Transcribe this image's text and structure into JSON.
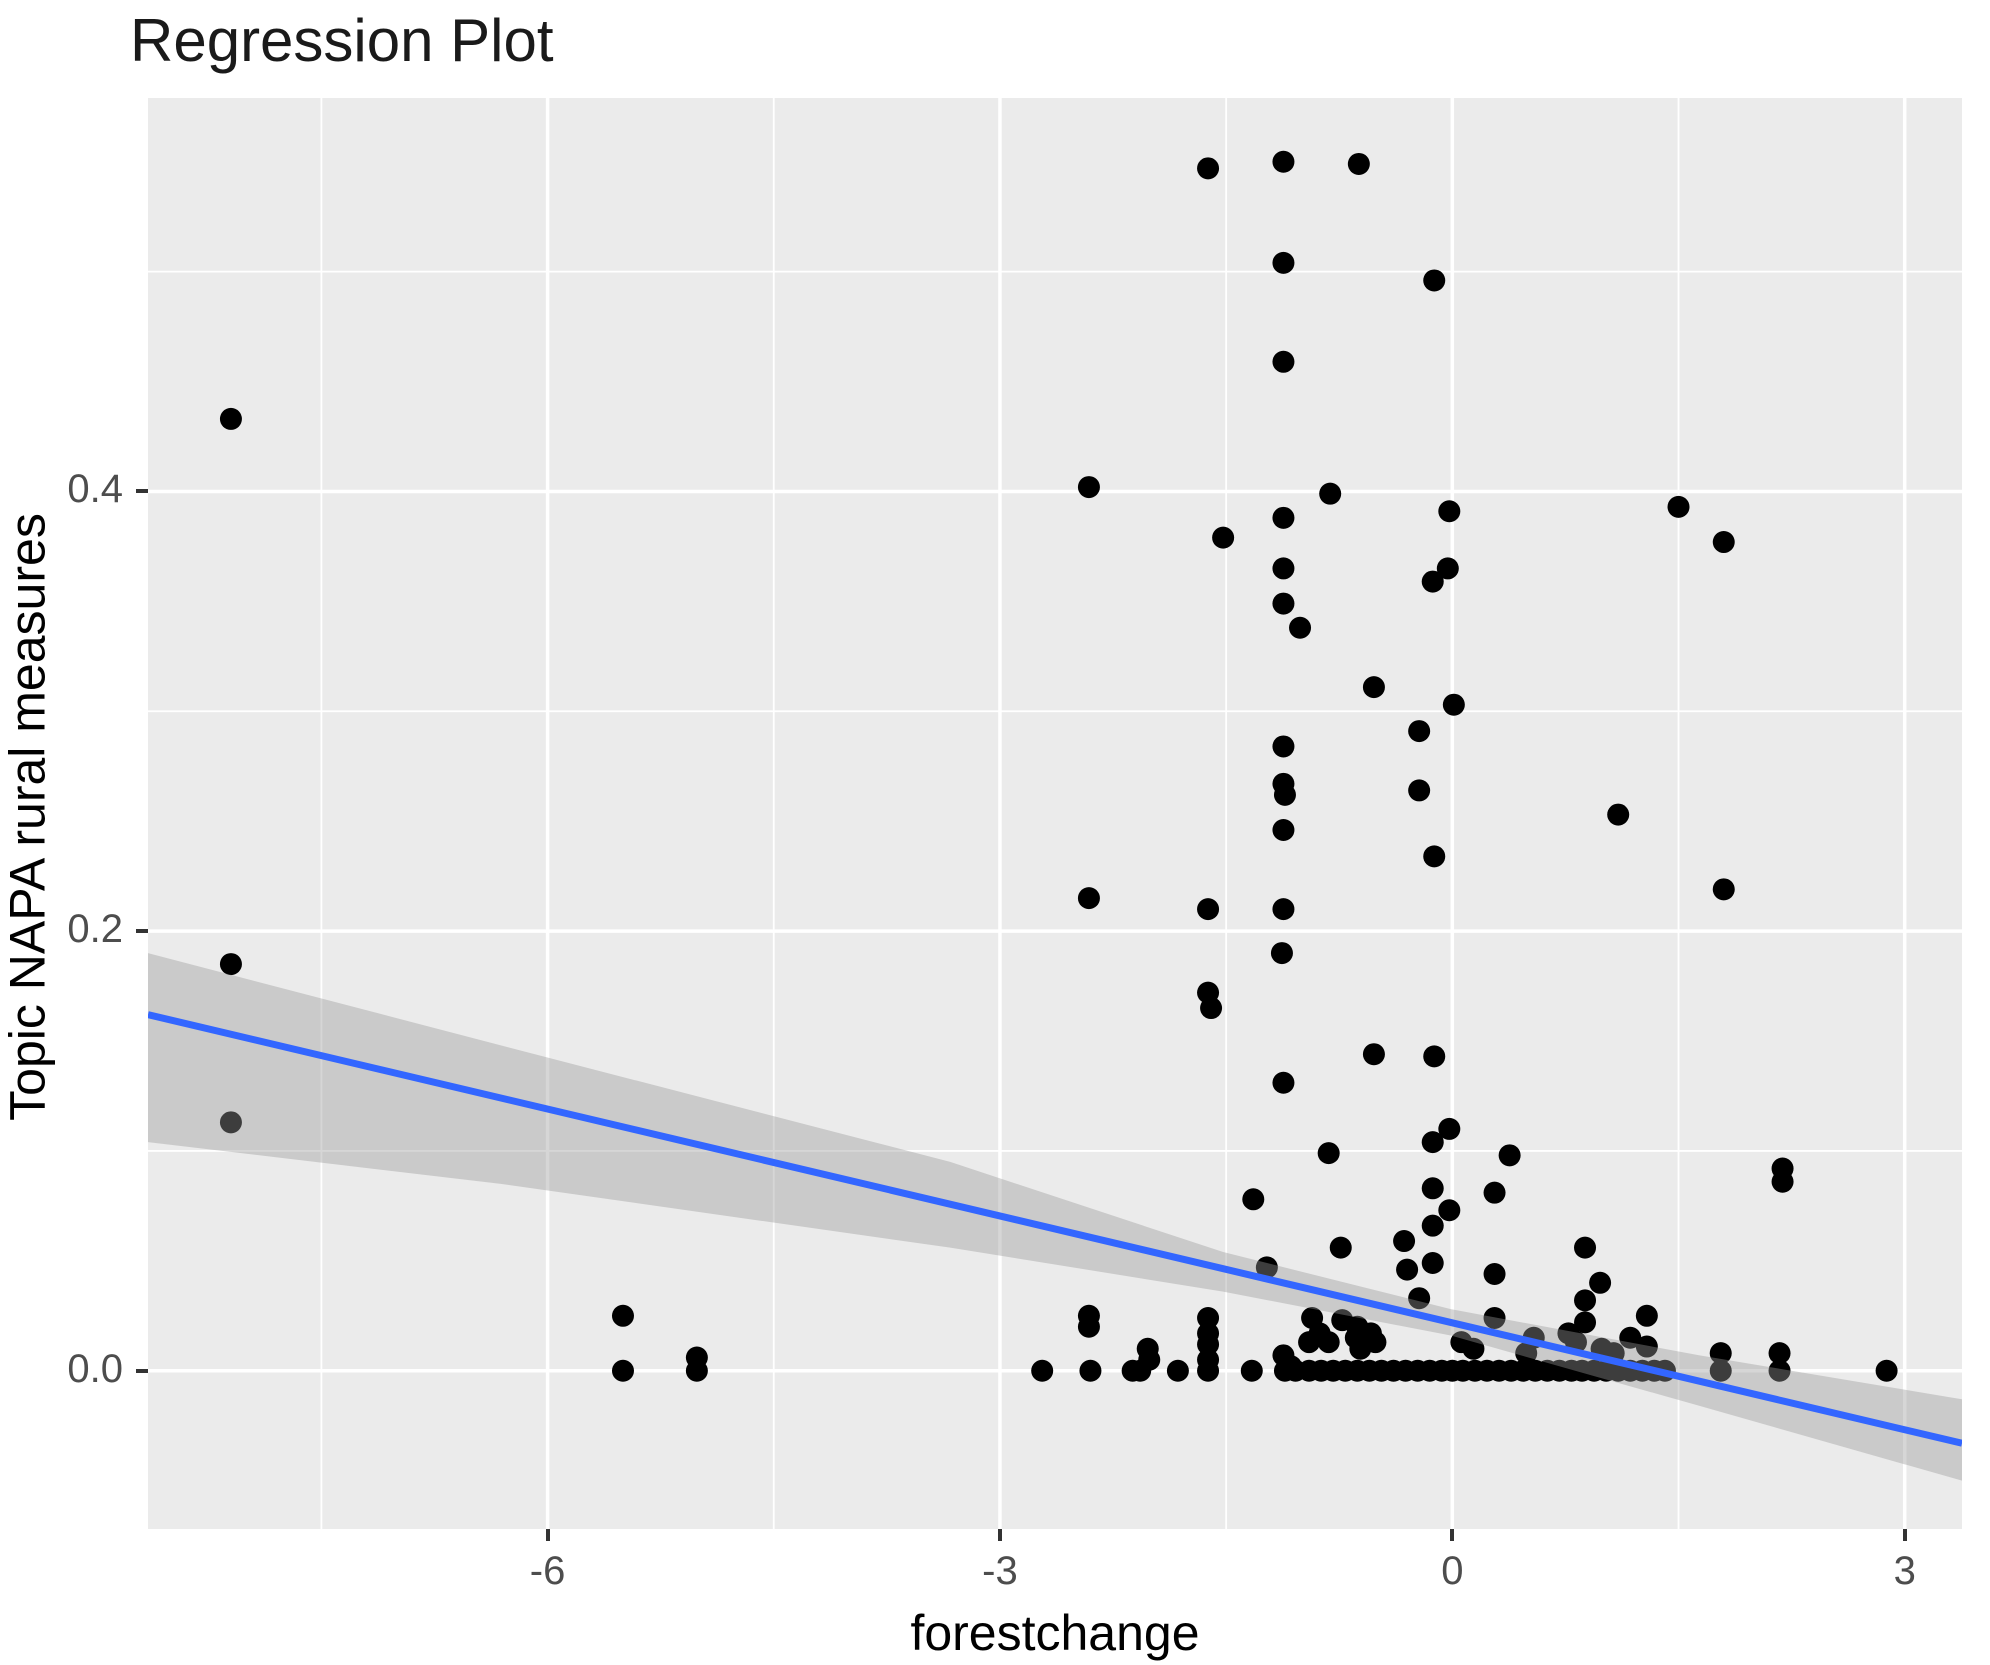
{
  "chart_data": {
    "type": "scatter",
    "title": "Regression Plot",
    "xlabel": "forestchange",
    "ylabel": "Topic NAPA rural measures",
    "xlim": [
      -8.65,
      3.38
    ],
    "ylim": [
      -0.072,
      0.579
    ],
    "grid": true,
    "legend": false,
    "x_ticks": [
      -6,
      -3,
      0,
      3
    ],
    "x_tick_labels": [
      "-6",
      "-3",
      "0",
      "3"
    ],
    "y_ticks": [
      0.0,
      0.2,
      0.4
    ],
    "y_tick_labels": [
      "0.0",
      "0.2",
      "0.4"
    ],
    "x_minor_ticks": [
      -7.5,
      -4.5,
      -1.5,
      1.5
    ],
    "y_minor_ticks": [
      0.1,
      0.3,
      0.5
    ],
    "colors": {
      "page_bg": "#FFFFFF",
      "panel_bg": "#EBEBEB",
      "grid": "#FFFFFF",
      "point": "#000000",
      "line": "#3366FF",
      "band": "rgba(153,153,153,0.40)",
      "tick_label": "#4D4D4D",
      "tick_mark": "#333333"
    },
    "regression_line": {
      "x": [
        -8.65,
        3.38
      ],
      "y": [
        0.162,
        -0.033
      ]
    },
    "confidence_band": {
      "x": [
        -8.65,
        -6.31,
        -3.33,
        -1.52,
        -0.01,
        1.64,
        3.38
      ],
      "upper": [
        0.19,
        0.148,
        0.095,
        0.054,
        0.028,
        0.007,
        -0.013
      ],
      "lower": [
        0.104,
        0.085,
        0.056,
        0.036,
        0.016,
        -0.016,
        -0.05
      ]
    },
    "points": [
      [
        -8.1,
        0.433
      ],
      [
        -8.1,
        0.185
      ],
      [
        -8.1,
        0.113
      ],
      [
        -5.5,
        0.025
      ],
      [
        -5.5,
        0.0
      ],
      [
        -5.01,
        0.006
      ],
      [
        -5.01,
        0.0
      ],
      [
        -2.72,
        0.0
      ],
      [
        -2.41,
        0.402
      ],
      [
        -2.41,
        0.215
      ],
      [
        -2.41,
        0.025
      ],
      [
        -2.41,
        0.02
      ],
      [
        -2.4,
        0.0
      ],
      [
        -2.12,
        0.0
      ],
      [
        -2.07,
        0.0
      ],
      [
        -2.02,
        0.01
      ],
      [
        -2.01,
        0.005
      ],
      [
        -1.82,
        0.0
      ],
      [
        -1.62,
        0.547
      ],
      [
        -1.52,
        0.379
      ],
      [
        -1.62,
        0.21
      ],
      [
        -1.62,
        0.172
      ],
      [
        -1.6,
        0.165
      ],
      [
        -1.62,
        0.024
      ],
      [
        -1.62,
        0.017
      ],
      [
        -1.62,
        0.012
      ],
      [
        -1.62,
        0.005
      ],
      [
        -1.62,
        0.0
      ],
      [
        -1.12,
        0.55
      ],
      [
        -1.12,
        0.504
      ],
      [
        -1.12,
        0.459
      ],
      [
        -1.12,
        0.388
      ],
      [
        -1.12,
        0.365
      ],
      [
        -1.12,
        0.349
      ],
      [
        -1.01,
        0.338
      ],
      [
        -1.12,
        0.284
      ],
      [
        -1.12,
        0.267
      ],
      [
        -1.11,
        0.262
      ],
      [
        -1.12,
        0.246
      ],
      [
        -1.12,
        0.21
      ],
      [
        -1.13,
        0.19
      ],
      [
        -1.12,
        0.131
      ],
      [
        -1.32,
        0.078
      ],
      [
        -1.23,
        0.047
      ],
      [
        -1.33,
        0.0
      ],
      [
        -1.12,
        0.007
      ],
      [
        -1.07,
        0.002
      ],
      [
        -1.11,
        0.0
      ],
      [
        -1.04,
        0.0
      ],
      [
        -0.95,
        0.013
      ],
      [
        -0.93,
        0.024
      ],
      [
        -0.88,
        0.017
      ],
      [
        -0.82,
        0.013
      ],
      [
        -0.82,
        0.099
      ],
      [
        -0.81,
        0.399
      ],
      [
        -0.74,
        0.056
      ],
      [
        -0.73,
        0.023
      ],
      [
        -0.64,
        0.015
      ],
      [
        -0.63,
        0.02
      ],
      [
        -0.62,
        0.549
      ],
      [
        -0.61,
        0.01
      ],
      [
        -0.54,
        0.017
      ],
      [
        -0.52,
        0.311
      ],
      [
        -0.52,
        0.144
      ],
      [
        -0.51,
        0.013
      ],
      [
        -0.32,
        0.059
      ],
      [
        -0.3,
        0.046
      ],
      [
        -0.22,
        0.291
      ],
      [
        -0.22,
        0.264
      ],
      [
        -0.22,
        0.033
      ],
      [
        -0.12,
        0.496
      ],
      [
        -0.13,
        0.359
      ],
      [
        -0.03,
        0.365
      ],
      [
        -0.12,
        0.234
      ],
      [
        -0.12,
        0.143
      ],
      [
        -0.02,
        0.391
      ],
      [
        0.01,
        0.303
      ],
      [
        -0.02,
        0.11
      ],
      [
        -0.13,
        0.104
      ],
      [
        -0.13,
        0.083
      ],
      [
        -0.02,
        0.073
      ],
      [
        -0.13,
        0.066
      ],
      [
        -0.13,
        0.049
      ],
      [
        -0.95,
        0.0
      ],
      [
        -0.87,
        0.0
      ],
      [
        -0.79,
        0.0
      ],
      [
        -0.71,
        0.0
      ],
      [
        -0.63,
        0.0
      ],
      [
        -0.55,
        0.0
      ],
      [
        -0.47,
        0.0
      ],
      [
        -0.39,
        0.0
      ],
      [
        -0.31,
        0.0
      ],
      [
        -0.23,
        0.0
      ],
      [
        -0.15,
        0.0
      ],
      [
        -0.07,
        0.0
      ],
      [
        0.0,
        0.0
      ],
      [
        0.07,
        0.0
      ],
      [
        0.15,
        0.0
      ],
      [
        0.23,
        0.0
      ],
      [
        0.31,
        0.0
      ],
      [
        0.39,
        0.0
      ],
      [
        0.47,
        0.0
      ],
      [
        0.55,
        0.0
      ],
      [
        0.63,
        0.0
      ],
      [
        0.71,
        0.0
      ],
      [
        0.79,
        0.0
      ],
      [
        0.86,
        0.0
      ],
      [
        0.94,
        0.0
      ],
      [
        1.02,
        0.0
      ],
      [
        1.1,
        0.0
      ],
      [
        1.18,
        0.0
      ],
      [
        1.26,
        0.0
      ],
      [
        1.34,
        0.0
      ],
      [
        1.41,
        0.0
      ],
      [
        0.06,
        0.013
      ],
      [
        0.14,
        0.01
      ],
      [
        0.28,
        0.081
      ],
      [
        0.28,
        0.044
      ],
      [
        0.28,
        0.024
      ],
      [
        0.38,
        0.098
      ],
      [
        0.49,
        0.008
      ],
      [
        0.54,
        0.015
      ],
      [
        0.77,
        0.017
      ],
      [
        0.82,
        0.013
      ],
      [
        0.88,
        0.056
      ],
      [
        0.88,
        0.032
      ],
      [
        0.88,
        0.022
      ],
      [
        0.98,
        0.04
      ],
      [
        0.99,
        0.01
      ],
      [
        1.07,
        0.008
      ],
      [
        1.1,
        0.253
      ],
      [
        1.18,
        0.015
      ],
      [
        1.29,
        0.025
      ],
      [
        1.29,
        0.011
      ],
      [
        1.5,
        0.393
      ],
      [
        1.78,
        0.008
      ],
      [
        1.78,
        0.0
      ],
      [
        1.8,
        0.377
      ],
      [
        1.8,
        0.219
      ],
      [
        2.17,
        0.008
      ],
      [
        2.17,
        0.0
      ],
      [
        2.19,
        0.092
      ],
      [
        2.19,
        0.086
      ],
      [
        2.88,
        0.0
      ]
    ]
  }
}
